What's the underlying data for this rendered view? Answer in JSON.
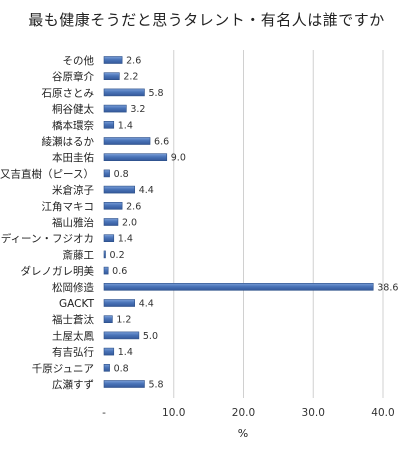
{
  "chart_data": {
    "type": "bar",
    "orientation": "horizontal",
    "title": "最も健康そうだと思うタレント・有名人は誰ですか",
    "xlabel": "%",
    "ylabel": "",
    "categories": [
      "その他",
      "谷原章介",
      "石原さとみ",
      "桐谷健太",
      "橋本環奈",
      "綾瀬はるか",
      "本田圭佑",
      "又吉直樹（ピース）",
      "米倉涼子",
      "江角マキコ",
      "福山雅治",
      "ディーン・フジオカ",
      "斎藤工",
      "ダレノガレ明美",
      "松岡修造",
      "GACKT",
      "福士蒼汰",
      "土屋太鳳",
      "有吉弘行",
      "千原ジュニア",
      "広瀬すず"
    ],
    "values": [
      2.6,
      2.2,
      5.8,
      3.2,
      1.4,
      6.6,
      9.0,
      0.8,
      4.4,
      2.6,
      2.0,
      1.4,
      0.2,
      0.6,
      38.6,
      4.4,
      1.2,
      5.0,
      1.4,
      0.8,
      5.8
    ],
    "value_labels": [
      "2.6",
      "2.2",
      "5.8",
      "3.2",
      "1.4",
      "6.6",
      "9.0",
      "0.8",
      "4.4",
      "2.6",
      "2.0",
      "1.4",
      "0.2",
      "0.6",
      "38.6",
      "4.4",
      "1.2",
      "5.0",
      "1.4",
      "0.8",
      "5.8"
    ],
    "xlim": [
      0,
      40
    ],
    "xticks": [
      0,
      10,
      20,
      30,
      40
    ],
    "xtick_labels": [
      "-",
      "10.0",
      "20.0",
      "30.0",
      "40.0"
    ],
    "grid": true,
    "bar_color": "#4a74b8",
    "bar_edge_color": "#2c4f88"
  }
}
